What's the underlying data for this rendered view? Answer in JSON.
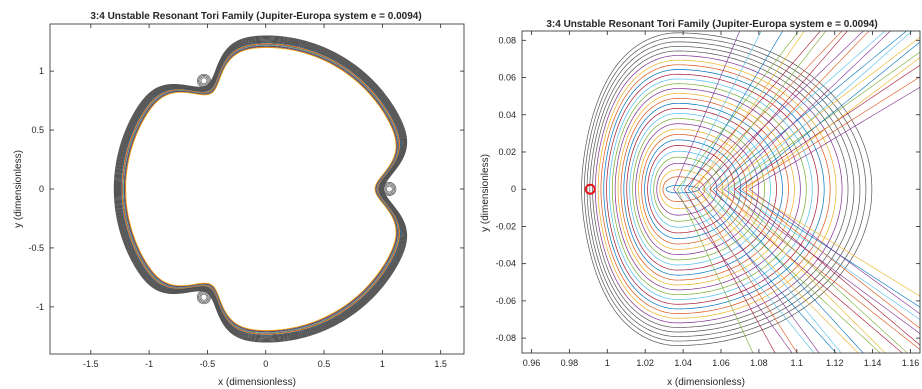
{
  "chart_data": [
    {
      "type": "line",
      "title": "3:4 Unstable Resonant Tori Family (Jupiter-Europa system e = 0.0094)",
      "xlabel": "x (dimensionless)",
      "ylabel": "y (dimensionless)",
      "xlim": [
        -1.85,
        1.7
      ],
      "ylim": [
        -1.4,
        1.4
      ],
      "xticks": [
        -1.5,
        -1,
        -0.5,
        0,
        0.5,
        1,
        1.5
      ],
      "xtick_labels": [
        "-1.5",
        "-1",
        "-0.5",
        "0",
        "0.5",
        "1",
        "1.5"
      ],
      "yticks": [
        -1,
        -0.5,
        0,
        0.5,
        1
      ],
      "ytick_labels": [
        "-1",
        "-0.5",
        "0",
        "0.5",
        "1"
      ],
      "grid": false,
      "legend": "none",
      "family": {
        "count": 24,
        "base_radius": 1.3,
        "radius_spread": 0.1,
        "lobes": 3,
        "lobe_depth": 0.22,
        "lobe_sharpness": 10,
        "lobe_phase_deg": 0
      }
    },
    {
      "type": "line",
      "title": "3:4 Unstable Resonant Tori Family (Jupiter-Europa system e = 0.0094)",
      "xlabel": "x (dimensionless)",
      "ylabel": "y (dimensionless)",
      "xlim": [
        0.955,
        1.165
      ],
      "ylim": [
        -0.088,
        0.085
      ],
      "xticks": [
        0.96,
        0.98,
        1,
        1.02,
        1.04,
        1.06,
        1.08,
        1.1,
        1.12,
        1.14,
        1.16
      ],
      "xtick_labels": [
        "0.96",
        "0.98",
        "1",
        "1.02",
        "1.04",
        "1.06",
        "1.08",
        "1.1",
        "1.12",
        "1.14",
        "1.16"
      ],
      "yticks": [
        -0.08,
        -0.06,
        -0.04,
        -0.02,
        0,
        0.02,
        0.04,
        0.06,
        0.08
      ],
      "ytick_labels": [
        "-0.08",
        "-0.06",
        "-0.04",
        "-0.02",
        "0",
        "0.02",
        "0.04",
        "0.06",
        "0.08"
      ],
      "grid": false,
      "legend": "none",
      "marker": {
        "x": 0.991,
        "y": 0,
        "color": "#e8141c",
        "shape": "circle"
      },
      "family": {
        "count": 30,
        "center_x": 1.037,
        "center_y": 0,
        "x_extent_min": 0.006,
        "x_extent_max": 0.054,
        "y_extent_min": 0.002,
        "y_extent_max": 0.084,
        "heart_dip": 0.32
      },
      "crossing_curves": {
        "count": 22,
        "apex_x_min": 1.035,
        "apex_x_max": 1.075
      }
    }
  ],
  "colors": {
    "series": [
      "#0072bd",
      "#d95319",
      "#edb120",
      "#7e2f8e",
      "#77ac30",
      "#4dbeee",
      "#a2142f"
    ],
    "axis": "#262626",
    "outer_band": "#555555"
  }
}
